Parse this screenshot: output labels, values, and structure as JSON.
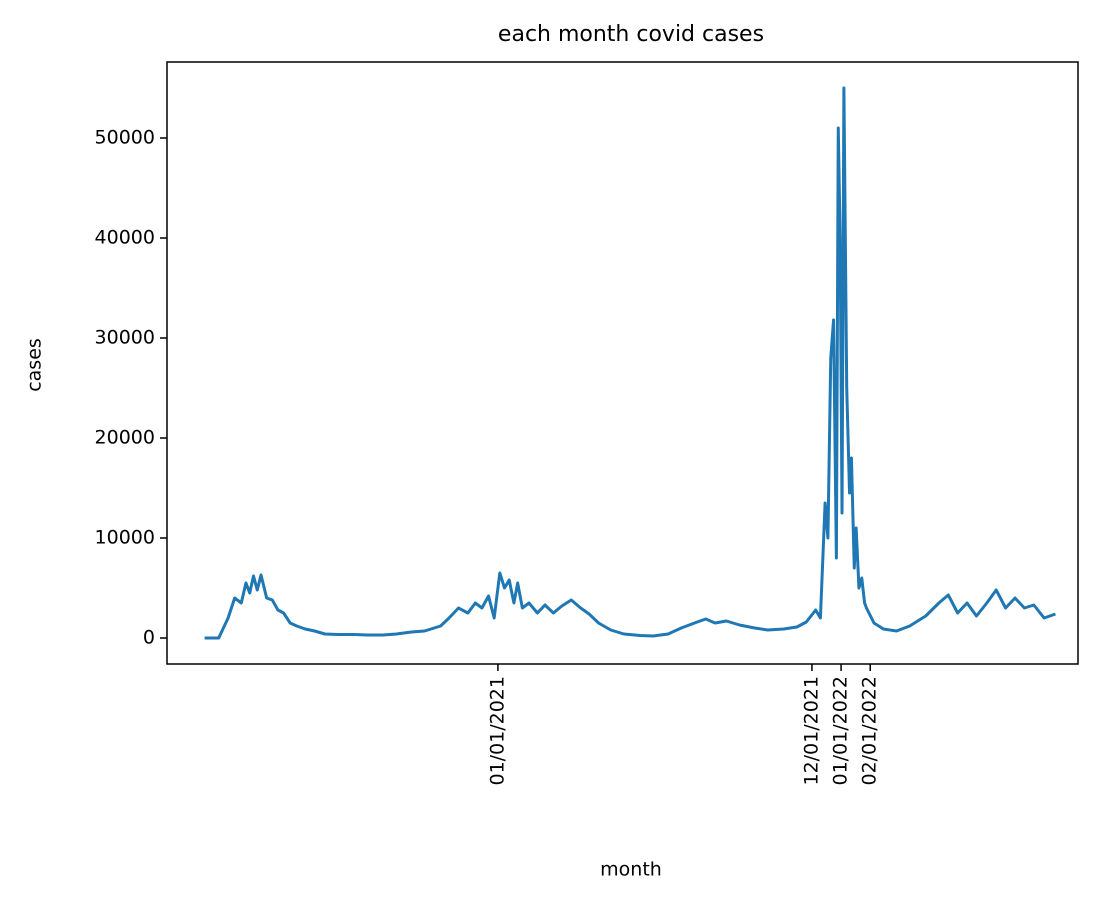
{
  "chart_data": {
    "type": "line",
    "title": "each month covid cases",
    "x_label": "month",
    "y_label": "cases",
    "xlim": [
      "01/15/2020",
      "09/10/2022"
    ],
    "xticks": [
      "01/01/2021",
      "12/01/2021",
      "01/01/2022",
      "02/01/2022"
    ],
    "ylim": [
      -2600,
      57600
    ],
    "yticks": [
      0,
      10000,
      20000,
      30000,
      40000,
      50000
    ],
    "series": [
      {
        "name": "cases",
        "color": "#1f77b4",
        "x": [
          "02/24/2020",
          "03/10/2020",
          "03/20/2020",
          "03/27/2020",
          "04/03/2020",
          "04/08/2020",
          "04/12/2020",
          "04/16/2020",
          "04/20/2020",
          "04/24/2020",
          "04/30/2020",
          "05/06/2020",
          "05/12/2020",
          "05/18/2020",
          "05/25/2020",
          "06/01/2020",
          "06/10/2020",
          "06/20/2020",
          "07/01/2020",
          "07/15/2020",
          "08/01/2020",
          "08/15/2020",
          "09/01/2020",
          "09/15/2020",
          "10/01/2020",
          "10/15/2020",
          "11/01/2020",
          "11/10/2020",
          "11/20/2020",
          "11/30/2020",
          "12/08/2020",
          "12/15/2020",
          "12/22/2020",
          "12/28/2020",
          "01/03/2021",
          "01/08/2021",
          "01/13/2021",
          "01/18/2021",
          "01/22/2021",
          "01/27/2021",
          "02/03/2021",
          "02/12/2021",
          "02/20/2021",
          "03/01/2021",
          "03/10/2021",
          "03/20/2021",
          "03/30/2021",
          "04/08/2021",
          "04/18/2021",
          "05/01/2021",
          "05/15/2021",
          "06/01/2021",
          "06/15/2021",
          "07/01/2021",
          "07/15/2021",
          "08/01/2021",
          "08/10/2021",
          "08/20/2021",
          "09/01/2021",
          "09/15/2021",
          "10/01/2021",
          "10/15/2021",
          "11/01/2021",
          "11/15/2021",
          "11/25/2021",
          "12/05/2021",
          "12/10/2021",
          "12/15/2021",
          "12/18/2021",
          "12/21/2021",
          "12/24/2021",
          "12/27/2021",
          "12/29/2021",
          "12/31/2021",
          "01/02/2022",
          "01/04/2022",
          "01/07/2022",
          "01/10/2022",
          "01/12/2022",
          "01/15/2022",
          "01/17/2022",
          "01/20/2022",
          "01/23/2022",
          "01/26/2022",
          "01/28/2022",
          "02/05/2022",
          "02/15/2022",
          "03/01/2022",
          "03/15/2022",
          "04/01/2022",
          "04/15/2022",
          "04/25/2022",
          "05/05/2022",
          "05/15/2022",
          "05/25/2022",
          "06/05/2022",
          "06/15/2022",
          "06/25/2022",
          "07/05/2022",
          "07/15/2022",
          "07/25/2022",
          "08/05/2022",
          "08/17/2022"
        ],
        "values": [
          0,
          0,
          2000,
          4000,
          3500,
          5500,
          4500,
          6200,
          4800,
          6300,
          4000,
          3800,
          2800,
          2500,
          1500,
          1200,
          900,
          700,
          400,
          350,
          350,
          300,
          300,
          400,
          600,
          700,
          1200,
          2000,
          3000,
          2500,
          3500,
          3000,
          4200,
          2000,
          6500,
          5000,
          5800,
          3500,
          5500,
          3000,
          3500,
          2500,
          3300,
          2500,
          3200,
          3800,
          3000,
          2400,
          1500,
          800,
          400,
          250,
          200,
          400,
          1000,
          1600,
          1900,
          1500,
          1700,
          1300,
          1000,
          800,
          900,
          1100,
          1600,
          2800,
          2000,
          13500,
          10000,
          28000,
          31800,
          8000,
          51000,
          40000,
          12500,
          55000,
          25000,
          14500,
          18000,
          7000,
          11000,
          5000,
          6000,
          3500,
          3000,
          1500,
          900,
          700,
          1200,
          2200,
          3500,
          4300,
          2500,
          3500,
          2200,
          3500,
          4800,
          3000,
          4000,
          3000,
          3300,
          2000,
          2400
        ]
      }
    ]
  }
}
